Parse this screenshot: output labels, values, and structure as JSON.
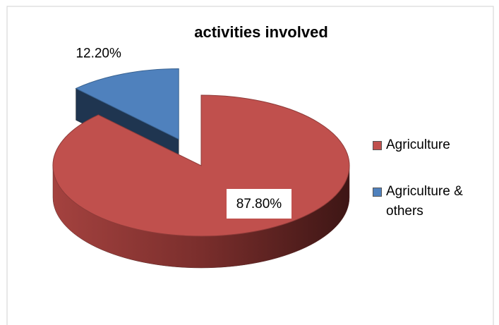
{
  "chart_data": {
    "type": "pie3d",
    "title": "activities involved",
    "categories": [
      "Agriculture",
      "Agriculture & others"
    ],
    "values": [
      87.8,
      12.2
    ],
    "value_labels": [
      "87.80%",
      "12.20%"
    ],
    "colors": [
      "#c0504d",
      "#4f81bd"
    ],
    "exploded": [
      false,
      true
    ],
    "legend": "right"
  }
}
